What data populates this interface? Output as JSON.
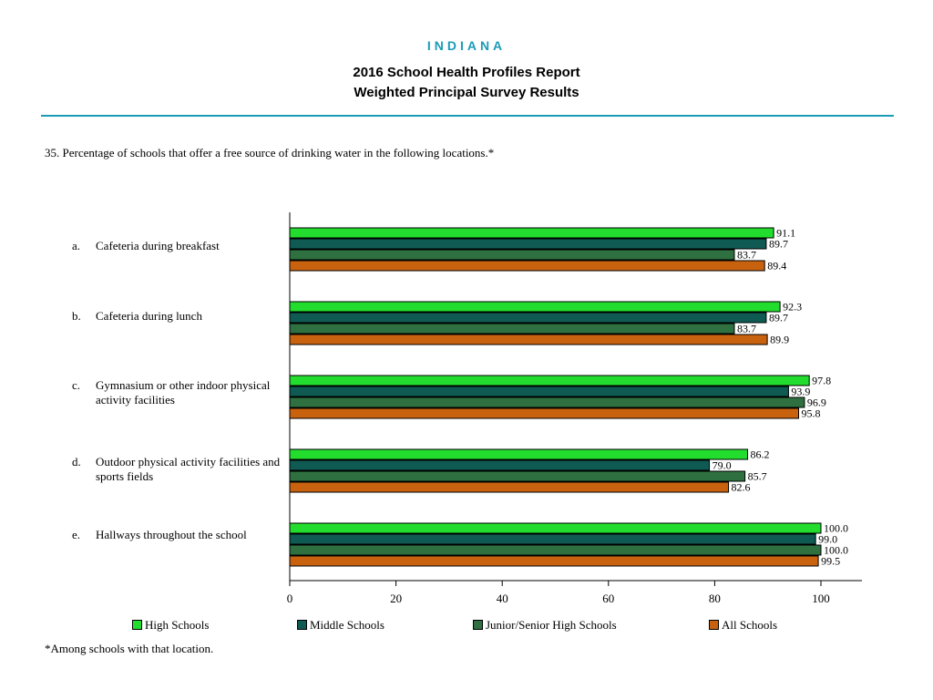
{
  "header": {
    "state": "INDIANA",
    "title_line1": "2016 School Health Profiles Report",
    "title_line2": "Weighted Principal Survey Results"
  },
  "question": "35.   Percentage of schools that offer a free source of drinking water in the following locations.*",
  "footnote": "*Among schools with that location.",
  "chart_data": {
    "type": "bar",
    "orientation": "horizontal",
    "categories": [
      {
        "letter": "a.",
        "label": "Cafeteria during breakfast"
      },
      {
        "letter": "b.",
        "label": "Cafeteria during lunch"
      },
      {
        "letter": "c.",
        "label": "Gymnasium or other indoor physical activity facilities"
      },
      {
        "letter": "d.",
        "label": "Outdoor physical activity facilities and sports fields"
      },
      {
        "letter": "e.",
        "label": "Hallways throughout the school"
      }
    ],
    "series": [
      {
        "name": "High Schools",
        "color": "#22dd2e",
        "values": [
          91.1,
          92.3,
          97.8,
          86.2,
          100.0
        ]
      },
      {
        "name": "Middle Schools",
        "color": "#0f5a52",
        "values": [
          89.7,
          89.7,
          93.9,
          79.0,
          99.0
        ]
      },
      {
        "name": "Junior/Senior High Schools",
        "color": "#2e7040",
        "values": [
          83.7,
          83.7,
          96.9,
          85.7,
          100.0
        ]
      },
      {
        "name": "All Schools",
        "color": "#c8620f",
        "values": [
          89.4,
          89.9,
          95.8,
          82.6,
          99.5
        ]
      }
    ],
    "xlim": [
      0,
      100
    ],
    "xticks": [
      "0",
      "20",
      "40",
      "60",
      "80",
      "100"
    ],
    "grid": false,
    "legend_position": "bottom"
  }
}
